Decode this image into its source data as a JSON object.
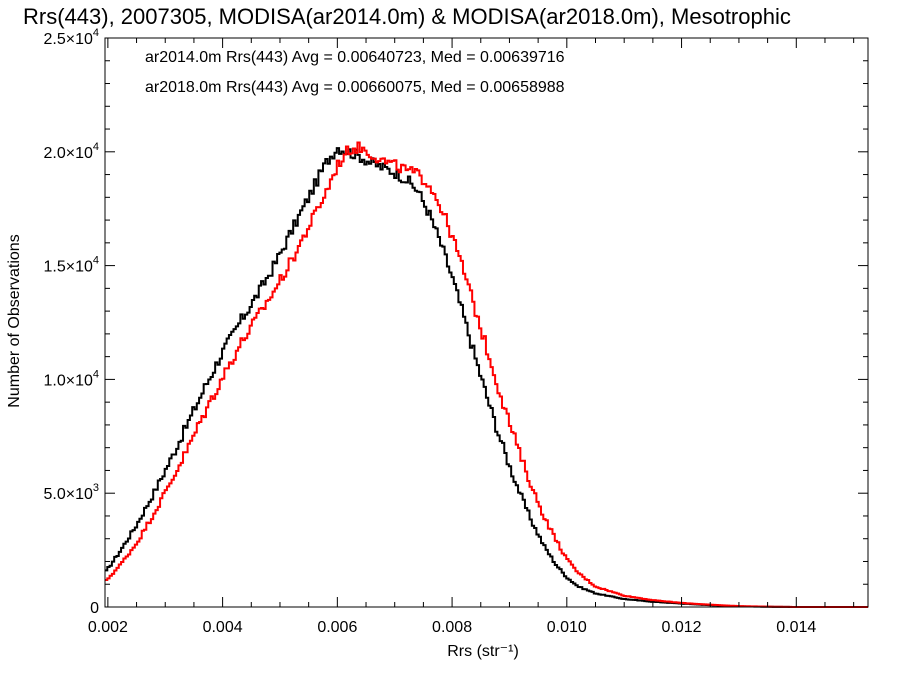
{
  "chart_data": {
    "type": "line",
    "style": "step-histogram",
    "title": "Rrs(443), 2007305, MODISA(ar2014.0m) & MODISA(ar2018.0m), Mesotrophic",
    "xlabel": "Rrs (str⁻¹)",
    "ylabel": "Number of Observations",
    "xlim": [
      0.00195,
      0.01525
    ],
    "ylim": [
      0,
      25000
    ],
    "grid": false,
    "x_ticks": [
      0.002,
      0.004,
      0.006,
      0.008,
      0.01,
      0.012,
      0.014
    ],
    "x_tick_labels": [
      "0.002",
      "0.004",
      "0.006",
      "0.008",
      "0.010",
      "0.012",
      "0.014"
    ],
    "y_ticks": [
      0,
      5000,
      10000,
      15000,
      20000,
      25000
    ],
    "y_tick_labels": [
      {
        "mantissa": "0",
        "exp": ""
      },
      {
        "mantissa": "5.0×10",
        "exp": "3"
      },
      {
        "mantissa": "1.0×10",
        "exp": "4"
      },
      {
        "mantissa": "1.5×10",
        "exp": "4"
      },
      {
        "mantissa": "2.0×10",
        "exp": "4"
      },
      {
        "mantissa": "2.5×10",
        "exp": "4"
      }
    ],
    "annotations": [
      {
        "text": "ar2014.0m Rrs(443) Avg = 0.00640723, Med = 0.00639716",
        "color": "#000000"
      },
      {
        "text": "ar2018.0m Rrs(443) Avg = 0.00660075, Med = 0.00658988",
        "color": "#ff0000"
      }
    ],
    "series": [
      {
        "name": "ar2014.0m",
        "color": "#000000",
        "points": [
          [
            0.00195,
            1500
          ],
          [
            0.0022,
            2400
          ],
          [
            0.0025,
            3600
          ],
          [
            0.0028,
            5000
          ],
          [
            0.0031,
            6500
          ],
          [
            0.0034,
            8100
          ],
          [
            0.0037,
            9700
          ],
          [
            0.004,
            11200
          ],
          [
            0.0043,
            12500
          ],
          [
            0.0046,
            13700
          ],
          [
            0.0049,
            15000
          ],
          [
            0.0052,
            16500
          ],
          [
            0.0055,
            18000
          ],
          [
            0.0058,
            19500
          ],
          [
            0.006,
            20200
          ],
          [
            0.0062,
            20000
          ],
          [
            0.0064,
            19800
          ],
          [
            0.0066,
            19500
          ],
          [
            0.0068,
            19300
          ],
          [
            0.007,
            19100
          ],
          [
            0.0072,
            18800
          ],
          [
            0.0074,
            18300
          ],
          [
            0.0076,
            17300
          ],
          [
            0.0078,
            16000
          ],
          [
            0.008,
            14500
          ],
          [
            0.0082,
            12800
          ],
          [
            0.0084,
            11000
          ],
          [
            0.0086,
            9300
          ],
          [
            0.0088,
            7700
          ],
          [
            0.009,
            6200
          ],
          [
            0.0092,
            4900
          ],
          [
            0.0094,
            3700
          ],
          [
            0.0096,
            2700
          ],
          [
            0.0098,
            1900
          ],
          [
            0.01,
            1300
          ],
          [
            0.0102,
            900
          ],
          [
            0.0105,
            600
          ],
          [
            0.011,
            350
          ],
          [
            0.0115,
            230
          ],
          [
            0.012,
            150
          ],
          [
            0.0125,
            80
          ],
          [
            0.013,
            30
          ],
          [
            0.0135,
            10
          ],
          [
            0.014,
            0
          ],
          [
            0.0152,
            0
          ]
        ]
      },
      {
        "name": "ar2018.0m",
        "color": "#ff0000",
        "points": [
          [
            0.00195,
            1100
          ],
          [
            0.0022,
            1800
          ],
          [
            0.0025,
            2800
          ],
          [
            0.0028,
            4100
          ],
          [
            0.0031,
            5500
          ],
          [
            0.0034,
            7000
          ],
          [
            0.0037,
            8600
          ],
          [
            0.004,
            10100
          ],
          [
            0.0043,
            11500
          ],
          [
            0.0046,
            12700
          ],
          [
            0.0049,
            13900
          ],
          [
            0.0052,
            15200
          ],
          [
            0.0055,
            16700
          ],
          [
            0.0058,
            18200
          ],
          [
            0.006,
            19400
          ],
          [
            0.0062,
            20100
          ],
          [
            0.0064,
            20200
          ],
          [
            0.0066,
            19900
          ],
          [
            0.0068,
            19600
          ],
          [
            0.007,
            19400
          ],
          [
            0.0072,
            19200
          ],
          [
            0.0074,
            19000
          ],
          [
            0.0076,
            18600
          ],
          [
            0.0078,
            17600
          ],
          [
            0.008,
            16300
          ],
          [
            0.0082,
            14800
          ],
          [
            0.0084,
            13100
          ],
          [
            0.0086,
            11400
          ],
          [
            0.0088,
            9700
          ],
          [
            0.009,
            8100
          ],
          [
            0.0092,
            6600
          ],
          [
            0.0094,
            5200
          ],
          [
            0.0096,
            4000
          ],
          [
            0.0098,
            3000
          ],
          [
            0.01,
            2100
          ],
          [
            0.0102,
            1500
          ],
          [
            0.0105,
            900
          ],
          [
            0.011,
            500
          ],
          [
            0.0115,
            300
          ],
          [
            0.012,
            180
          ],
          [
            0.0125,
            100
          ],
          [
            0.013,
            40
          ],
          [
            0.0135,
            15
          ],
          [
            0.014,
            0
          ],
          [
            0.0152,
            0
          ]
        ]
      }
    ]
  }
}
